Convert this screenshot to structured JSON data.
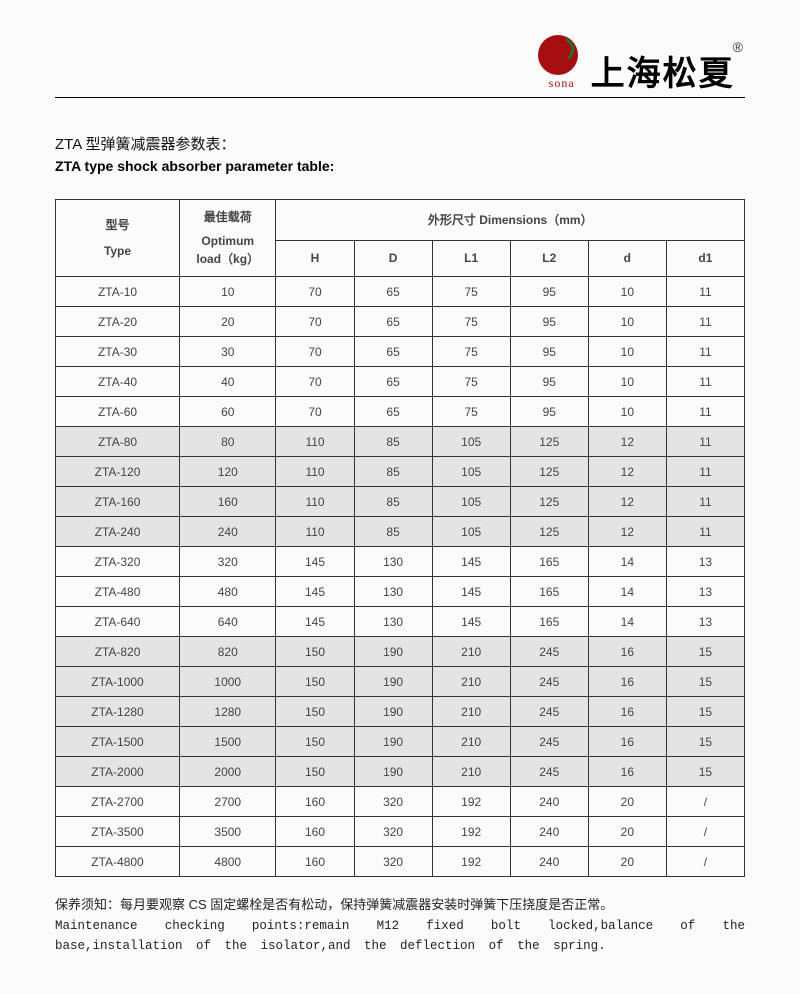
{
  "header": {
    "brand_text": "sona",
    "company_cn": "上海松夏",
    "reg": "®",
    "logo_color": "#a50f12",
    "logo_green": "#2a6a2f"
  },
  "title": {
    "cn": "ZTA 型弹簧减震器参数表：",
    "en": "ZTA type shock absorber parameter table:"
  },
  "table": {
    "col_headers": {
      "type_cn": "型号",
      "type_en": "Type",
      "load_cn": "最佳载荷",
      "load_en_1": "Optimum",
      "load_en_2": "load（kg）",
      "dimensions": "外形尺寸 Dimensions（mm）",
      "sub": [
        "H",
        "D",
        "L1",
        "L2",
        "d",
        "d1"
      ]
    },
    "rows": [
      {
        "gray": false,
        "cells": [
          "ZTA-10",
          "10",
          "70",
          "65",
          "75",
          "95",
          "10",
          "11"
        ]
      },
      {
        "gray": false,
        "cells": [
          "ZTA-20",
          "20",
          "70",
          "65",
          "75",
          "95",
          "10",
          "11"
        ]
      },
      {
        "gray": false,
        "cells": [
          "ZTA-30",
          "30",
          "70",
          "65",
          "75",
          "95",
          "10",
          "11"
        ]
      },
      {
        "gray": false,
        "cells": [
          "ZTA-40",
          "40",
          "70",
          "65",
          "75",
          "95",
          "10",
          "11"
        ]
      },
      {
        "gray": false,
        "cells": [
          "ZTA-60",
          "60",
          "70",
          "65",
          "75",
          "95",
          "10",
          "11"
        ]
      },
      {
        "gray": true,
        "cells": [
          "ZTA-80",
          "80",
          "110",
          "85",
          "105",
          "125",
          "12",
          "11"
        ]
      },
      {
        "gray": true,
        "cells": [
          "ZTA-120",
          "120",
          "110",
          "85",
          "105",
          "125",
          "12",
          "11"
        ]
      },
      {
        "gray": true,
        "cells": [
          "ZTA-160",
          "160",
          "110",
          "85",
          "105",
          "125",
          "12",
          "11"
        ]
      },
      {
        "gray": true,
        "cells": [
          "ZTA-240",
          "240",
          "110",
          "85",
          "105",
          "125",
          "12",
          "11"
        ]
      },
      {
        "gray": false,
        "cells": [
          "ZTA-320",
          "320",
          "145",
          "130",
          "145",
          "165",
          "14",
          "13"
        ]
      },
      {
        "gray": false,
        "cells": [
          "ZTA-480",
          "480",
          "145",
          "130",
          "145",
          "165",
          "14",
          "13"
        ]
      },
      {
        "gray": false,
        "cells": [
          "ZTA-640",
          "640",
          "145",
          "130",
          "145",
          "165",
          "14",
          "13"
        ]
      },
      {
        "gray": true,
        "cells": [
          "ZTA-820",
          "820",
          "150",
          "190",
          "210",
          "245",
          "16",
          "15"
        ]
      },
      {
        "gray": true,
        "cells": [
          "ZTA-1000",
          "1000",
          "150",
          "190",
          "210",
          "245",
          "16",
          "15"
        ]
      },
      {
        "gray": true,
        "cells": [
          "ZTA-1280",
          "1280",
          "150",
          "190",
          "210",
          "245",
          "16",
          "15"
        ]
      },
      {
        "gray": true,
        "cells": [
          "ZTA-1500",
          "1500",
          "150",
          "190",
          "210",
          "245",
          "16",
          "15"
        ]
      },
      {
        "gray": true,
        "cells": [
          "ZTA-2000",
          "2000",
          "150",
          "190",
          "210",
          "245",
          "16",
          "15"
        ]
      },
      {
        "gray": false,
        "cells": [
          "ZTA-2700",
          "2700",
          "160",
          "320",
          "192",
          "240",
          "20",
          "/"
        ]
      },
      {
        "gray": false,
        "cells": [
          "ZTA-3500",
          "3500",
          "160",
          "320",
          "192",
          "240",
          "20",
          "/"
        ]
      },
      {
        "gray": false,
        "cells": [
          "ZTA-4800",
          "4800",
          "160",
          "320",
          "192",
          "240",
          "20",
          "/"
        ]
      }
    ]
  },
  "footer": {
    "cn": "保养须知：每月要观察 CS 固定螺栓是否有松动，保持弹簧减震器安装时弹簧下压挠度是否正常。",
    "en": "Maintenance checking points:remain M12 fixed bolt locked,balance of the base,installation of the isolator,and the deflection of the spring."
  }
}
